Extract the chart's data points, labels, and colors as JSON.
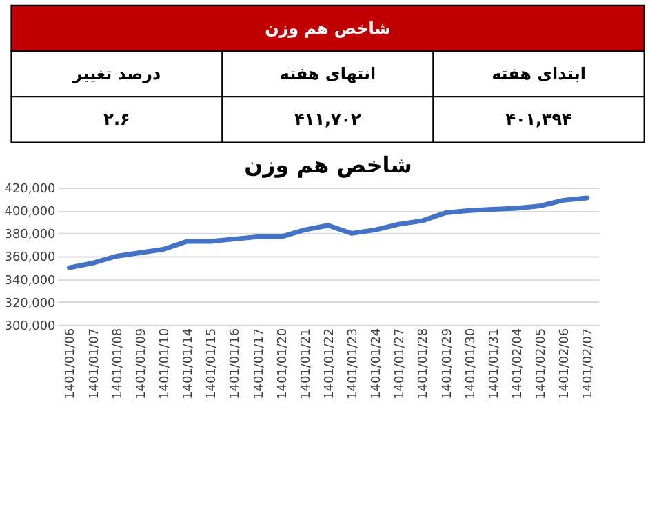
{
  "chart_data": [
    {
      "type": "other",
      "title": "شاخص هم وزن",
      "categories": [
        "درصد تغییر",
        "انتهای هفته",
        "ابتدای هفته"
      ],
      "value_labels": [
        "۲.۶",
        "۴۱۱,۷۰۲",
        "۴۰۱,۳۹۴"
      ]
    },
    {
      "type": "line",
      "title": "شاخص هم وزن",
      "categories": [
        "1401/01/06",
        "1401/01/07",
        "1401/01/08",
        "1401/01/09",
        "1401/01/10",
        "1401/01/14",
        "1401/01/15",
        "1401/01/16",
        "1401/01/17",
        "1401/01/20",
        "1401/01/21",
        "1401/01/22",
        "1401/01/23",
        "1401/01/24",
        "1401/01/27",
        "1401/01/28",
        "1401/01/29",
        "1401/01/30",
        "1401/01/31",
        "1401/02/04",
        "1401/02/05",
        "1401/02/06",
        "1401/02/07"
      ],
      "series": [
        {
          "color": "#4472c4",
          "values": [
            350000,
            354000,
            360000,
            363000,
            366000,
            373000,
            373000,
            375000,
            377000,
            377000,
            383000,
            387000,
            380000,
            383000,
            388000,
            391000,
            398000,
            400000,
            401000,
            402000,
            404000,
            409000,
            411000
          ]
        }
      ],
      "ylim": [
        300000,
        420000
      ],
      "yticks": [
        {
          "value": 300000,
          "label": "300,000"
        },
        {
          "value": 320000,
          "label": "320,000"
        },
        {
          "value": 340000,
          "label": "340,000"
        },
        {
          "value": 360000,
          "label": "360,000"
        },
        {
          "value": 380000,
          "label": "380,000"
        },
        {
          "value": 400000,
          "label": "400,000"
        },
        {
          "value": 420000,
          "label": "420,000"
        }
      ],
      "grid": "y",
      "marker": "none",
      "line_style": "solid"
    }
  ]
}
